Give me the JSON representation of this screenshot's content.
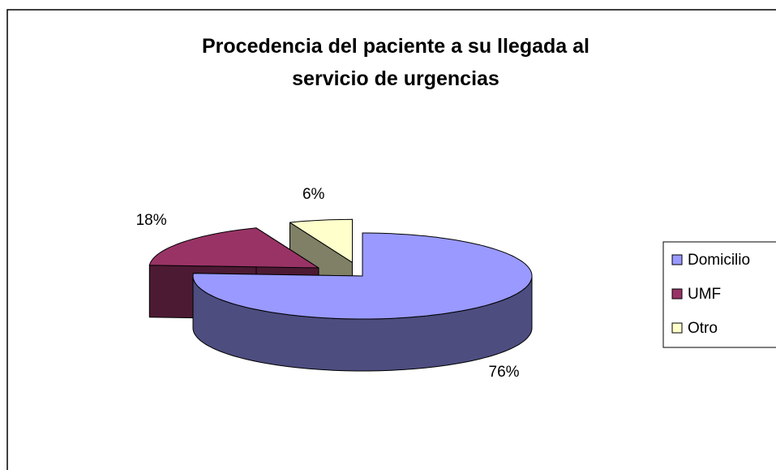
{
  "chart_data": {
    "type": "pie",
    "title": "Procedencia del paciente a su llegada al servicio de urgencias",
    "categories": [
      "Domicilio",
      "UMF",
      "Otro"
    ],
    "values": [
      76,
      18,
      6
    ],
    "value_labels": [
      "76%",
      "18%",
      "6%"
    ],
    "colors": [
      "#9999ff",
      "#993366",
      "#ffffcc"
    ],
    "legend": "right"
  }
}
